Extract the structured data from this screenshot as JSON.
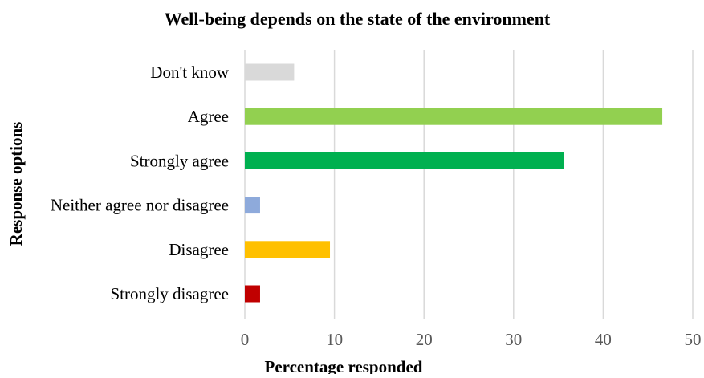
{
  "chart_data": {
    "type": "bar",
    "orientation": "horizontal",
    "title": "Well-being depends on the state of the environment",
    "xlabel": "Percentage responded",
    "ylabel": "Response options",
    "categories": [
      "Don't know",
      "Agree",
      "Strongly agree",
      "Neither agree nor disagree",
      "Disagree",
      "Strongly disagree"
    ],
    "values": [
      5.5,
      46.6,
      35.6,
      1.7,
      9.5,
      1.7
    ],
    "colors": [
      "#d9d9d9",
      "#92d050",
      "#00b050",
      "#8eaadb",
      "#ffc000",
      "#c00000"
    ],
    "xlim": [
      0,
      50
    ],
    "xticks": [
      0,
      10,
      20,
      30,
      40,
      50
    ],
    "grid": true,
    "legend": "none"
  }
}
